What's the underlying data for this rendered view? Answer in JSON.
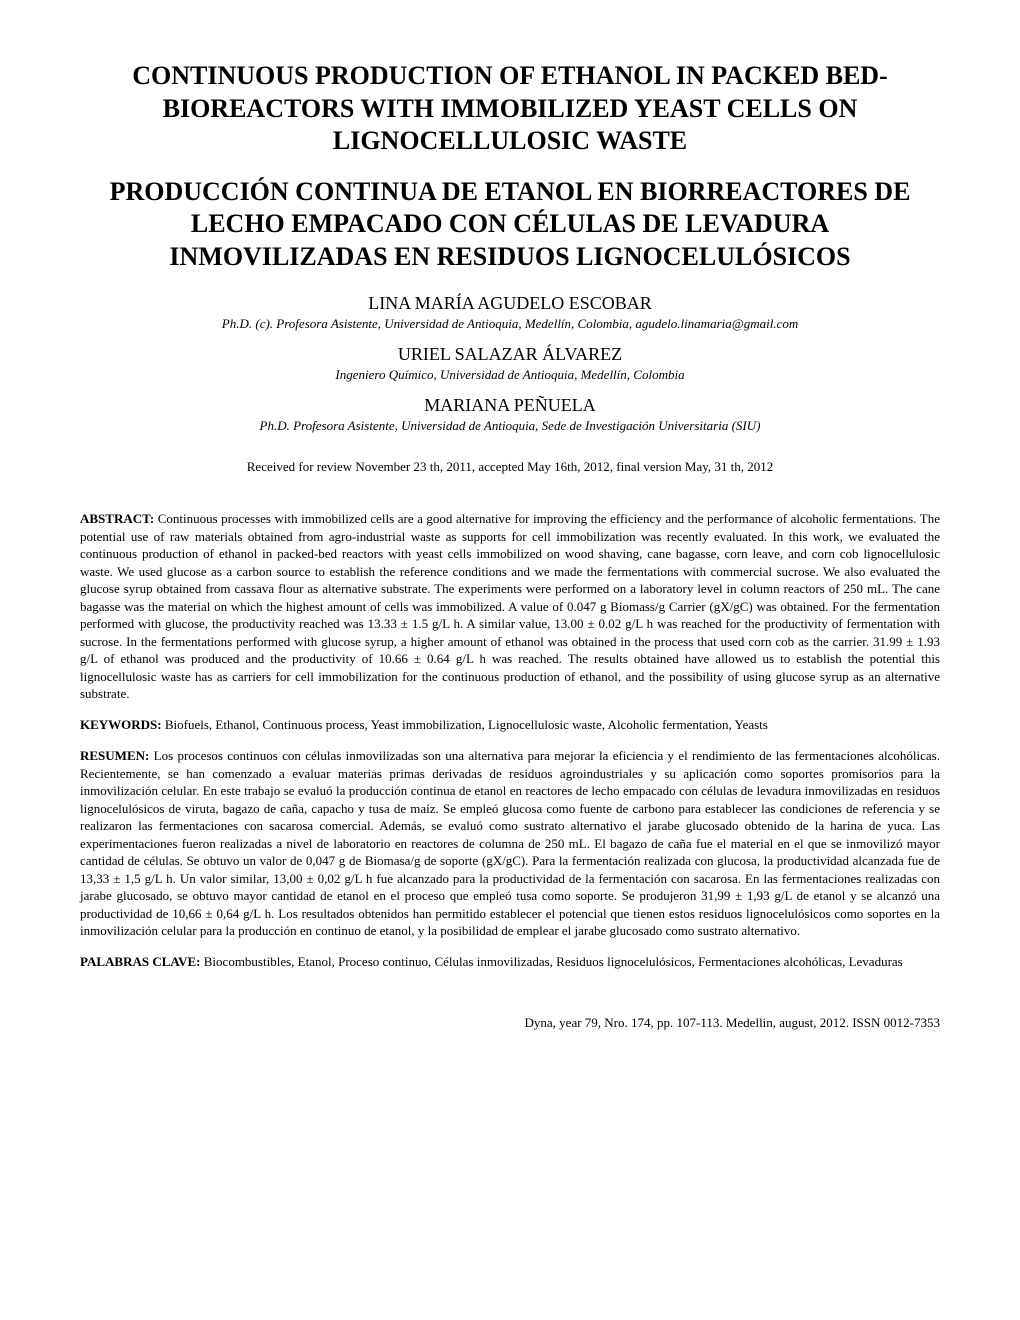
{
  "title_en": "CONTINUOUS PRODUCTION OF ETHANOL IN PACKED BED-BIOREACTORS WITH IMMOBILIZED YEAST CELLS ON LIGNOCELLULOSIC WASTE",
  "title_es": "PRODUCCIÓN CONTINUA DE ETANOL EN BIORREACTORES DE LECHO EMPACADO CON  CÉLULAS DE LEVADURA INMOVILIZADAS EN RESIDUOS LIGNOCELULÓSICOS",
  "authors": [
    {
      "name": "LINA MARÍA AGUDELO ESCOBAR",
      "affiliation": "Ph.D. (c). Profesora Asistente, Universidad de Antioquia, Medellín, Colombia, agudelo.linamaria@gmail.com"
    },
    {
      "name": "URIEL SALAZAR ÁLVAREZ",
      "affiliation": "Ingeniero Químico, Universidad de Antioquia, Medellín, Colombia"
    },
    {
      "name": "MARIANA PEÑUELA",
      "affiliation": "Ph.D. Profesora Asistente, Universidad de Antioquia, Sede de Investigación Universitaria (SIU)"
    }
  ],
  "dates": "Received for review November 23 th, 2011, accepted May  16th, 2012, final version May, 31 th, 2012",
  "abstract_label": "ABSTRACT:",
  "abstract_text": " Continuous processes with immobilized cells are a good alternative for improving the efficiency and the performance of alcoholic fermentations. The potential use of raw materials obtained from agro-industrial waste as supports for cell immobilization was recently evaluated. In this work, we evaluated the continuous production of ethanol in packed-bed reactors with yeast cells immobilized on wood shaving, cane bagasse, corn leave, and corn cob lignocellulosic waste. We used glucose as a carbon source to establish the reference conditions and we made the fermentations with commercial sucrose. We also evaluated the glucose syrup obtained from cassava flour as alternative substrate. The experiments were performed on a laboratory level in column reactors of 250 mL. The cane bagasse was the material on which the highest amount of cells was immobilized. A value of 0.047 g Biomass/g Carrier (gX/gC) was obtained. For the fermentation performed with glucose, the productivity reached was 13.33 ± 1.5 g/L h. A similar value, 13.00 ± 0.02 g/L h was reached for the productivity of fermentation with sucrose. In the fermentations performed with glucose syrup, a higher amount of ethanol was obtained in the process that used corn cob as the carrier. 31.99 ± 1.93 g/L of ethanol was produced and the productivity of 10.66 ± 0.64 g/L h was reached. The results obtained have allowed us to establish the potential this lignocellulosic waste has as carriers for cell immobilization for the continuous production of ethanol, and the possibility of using glucose syrup as an alternative substrate.",
  "keywords_label": "KEYWORDS:",
  "keywords_text": " Biofuels, Ethanol, Continuous process, Yeast immobilization, Lignocellulosic waste, Alcoholic fermentation, Yeasts",
  "resumen_label": "RESUMEN:",
  "resumen_text": " Los procesos continuos con células inmovilizadas son una alternativa para mejorar la eficiencia y el rendimiento de las fermentaciones alcohólicas. Recientemente, se han comenzado a evaluar materias primas derivadas de residuos agroindustriales y su aplicación como soportes promisorios para la inmovilización celular. En este trabajo se evaluó la producción continua de etanol en reactores de lecho empacado con células de levadura inmovilizadas en residuos lignocelulósicos de viruta, bagazo de caña, capacho y tusa de maíz. Se empleó glucosa como fuente de carbono para establecer las condiciones de referencia y se realizaron las fermentaciones con sacarosa comercial. Además, se evaluó como sustrato alternativo el jarabe glucosado obtenido de la harina de yuca. Las experimentaciones fueron realizadas a nivel de laboratorio en reactores de columna de 250 mL. El bagazo de caña fue el  material en el que se inmovilizó mayor  cantidad de células. Se obtuvo un valor de 0,047 g de Biomasa/g de soporte (gX/gC). Para la fermentación realizada con glucosa, la productividad alcanzada fue de 13,33 ± 1,5 g/L h. Un valor similar, 13,00 ± 0,02 g/L h fue alcanzado para la  productividad  de la fermentación con sacarosa. En las fermentaciones realizadas con jarabe glucosado, se obtuvo mayor cantidad de etanol en el proceso que empleó tusa como soporte. Se produjeron 31,99 ± 1,93 g/L de etanol y se alcanzó una productividad de 10,66 ± 0,64 g/L h.  Los resultados obtenidos han permitido establecer el potencial que tienen estos residuos lignocelulósicos como soportes en la inmovilización celular para la producción en continuo de etanol, y la posibilidad de emplear el jarabe glucosado como sustrato alternativo.",
  "palabras_label": "PALABRAS CLAVE:",
  "palabras_text": " Biocombustibles, Etanol, Proceso continuo, Células inmovilizadas, Residuos lignocelulósicos, Fermentaciones alcohólicas, Levaduras",
  "footer": "Dyna, year 79, Nro. 174, pp. 107-113.  Medellin, august, 2012.  ISSN 0012-7353",
  "style": {
    "background_color": "#ffffff",
    "text_color": "#000000",
    "title_fontsize": 26,
    "author_fontsize": 18,
    "affiliation_fontsize": 13,
    "body_fontsize": 13,
    "font_family": "Times New Roman"
  }
}
